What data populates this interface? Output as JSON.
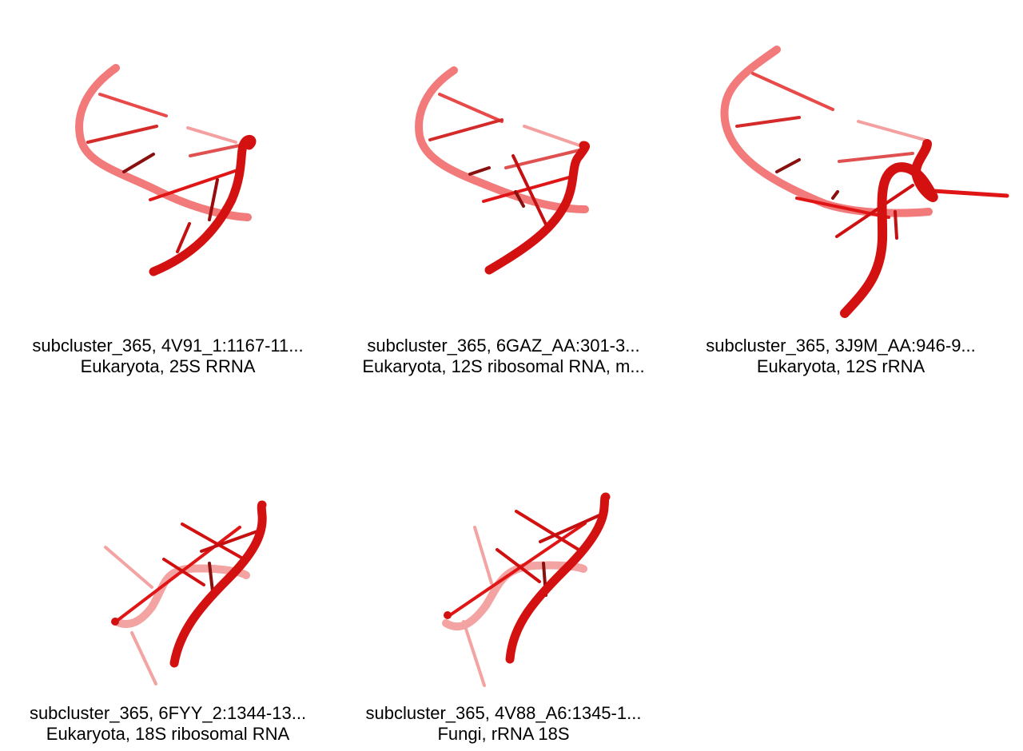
{
  "panels": [
    {
      "line1": "subcluster_365, 4V91_1:1167-11...",
      "line2": "Eukaryota, 25S RRNA"
    },
    {
      "line1": "subcluster_365, 6GAZ_AA:301-3...",
      "line2": "Eukaryota, 12S ribosomal RNA, m..."
    },
    {
      "line1": "subcluster_365, 3J9M_AA:946-9...",
      "line2": "Eukaryota, 12S rRNA"
    },
    {
      "line1": "subcluster_365, 6FYY_2:1344-13...",
      "line2": "Eukaryota, 18S ribosomal RNA"
    },
    {
      "line1": "subcluster_365, 4V88_A6:1345-1...",
      "line2": "Fungi, rRNA 18S"
    }
  ],
  "colors": {
    "backbone": "#e31a1c",
    "backbone_far": "#f07070",
    "stick": "#d01010",
    "stick_far": "#f49a9a"
  }
}
